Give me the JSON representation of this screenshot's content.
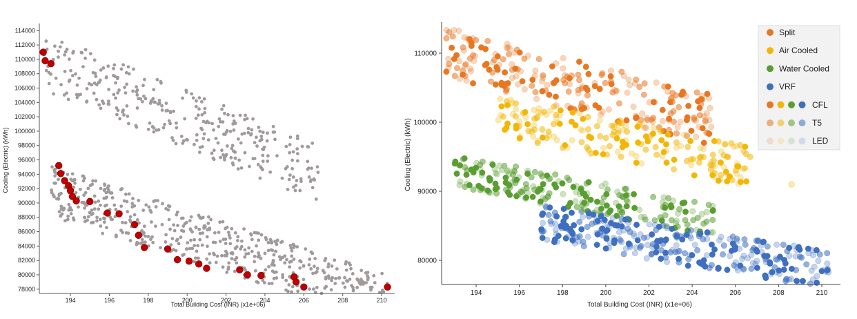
{
  "chart_data": [
    {
      "type": "scatter",
      "title": "",
      "xlabel": "Total Building Cost (INR) (x1e+06)",
      "ylabel": "Cooling (Electric) (kWh)",
      "xlim": [
        192.4,
        210.6
      ],
      "ylim": [
        77400,
        114800
      ],
      "xticks": [
        194,
        196,
        198,
        200,
        202,
        204,
        206,
        208,
        210
      ],
      "yticks": [
        78000,
        80000,
        82000,
        84000,
        86000,
        88000,
        90000,
        92000,
        94000,
        96000,
        98000,
        100000,
        102000,
        104000,
        106000,
        108000,
        110000,
        112000,
        114000
      ],
      "colors": {
        "points": "#a09a9a",
        "pareto": "#c00000",
        "pareto_edge": "#8a0000"
      },
      "clusters": [
        {
          "name": "",
          "x": [
            192.6,
            206.8
          ],
          "y": [
            94500,
            113800
          ],
          "slope": -1100,
          "n": 330
        },
        {
          "name": "",
          "x": [
            193.0,
            210.3
          ],
          "y": [
            78200,
            95200
          ],
          "slope": -880,
          "n": 560
        }
      ],
      "pareto_points": {
        "x": [
          192.6,
          192.7,
          193.0,
          193.4,
          193.5,
          193.7,
          193.9,
          194.0,
          194.1,
          194.3,
          195.0,
          195.9,
          196.5,
          197.3,
          197.5,
          197.8,
          199.0,
          199.5,
          200.1,
          200.6,
          201.0,
          202.7,
          203.1,
          203.8,
          205.5,
          205.6,
          206.0,
          210.3
        ],
        "y": [
          111000,
          109800,
          109400,
          95200,
          94100,
          93100,
          92400,
          91700,
          90900,
          90300,
          90200,
          88600,
          88500,
          87000,
          85500,
          83800,
          83600,
          82100,
          81900,
          81500,
          80900,
          80700,
          80000,
          79900,
          79700,
          79000,
          78300,
          78300
        ]
      }
    },
    {
      "type": "scatter",
      "title": "",
      "xlabel": "Total Building Cost (INR) (x1e+06)",
      "ylabel": "Cooling (Electric) (kWh)",
      "xlim": [
        192.4,
        210.8
      ],
      "ylim": [
        76500,
        114500
      ],
      "xticks": [
        194,
        196,
        198,
        200,
        202,
        204,
        206,
        208,
        210
      ],
      "yticks": [
        80000,
        90000,
        100000,
        110000
      ],
      "legend_position": "top-right",
      "color_legend": [
        {
          "label": "Split",
          "color": "#e87722"
        },
        {
          "label": "Air Cooled",
          "color": "#f2b705"
        },
        {
          "label": "Water Cooled",
          "color": "#5a9e32"
        },
        {
          "label": "VRF",
          "color": "#3f6fbf"
        }
      ],
      "shade_legend": [
        {
          "label": "CFL",
          "opacity": 1.0
        },
        {
          "label": "T5",
          "opacity": 0.55
        },
        {
          "label": "LED",
          "opacity": 0.18
        }
      ],
      "series": [
        {
          "name": "Split",
          "x": [
            192.6,
            205.0
          ],
          "y": [
            100500,
            113800
          ],
          "slope": -800,
          "n": 250
        },
        {
          "name": "Air Cooled",
          "x": [
            195.0,
            206.8
          ],
          "y": [
            93400,
            104000
          ],
          "slope": -650,
          "n": 200
        },
        {
          "name": "Water Cooled",
          "x": [
            193.0,
            205.0
          ],
          "y": [
            86800,
            95300
          ],
          "slope": -600,
          "n": 230
        },
        {
          "name": "VRF",
          "x": [
            197.0,
            210.3
          ],
          "y": [
            78200,
            88000
          ],
          "slope": -500,
          "n": 320
        }
      ],
      "extra_points": [
        {
          "x": 208.6,
          "y": 91000,
          "series": "Air Cooled"
        },
        {
          "x": 210.3,
          "y": 78300,
          "series": "VRF"
        }
      ]
    }
  ]
}
